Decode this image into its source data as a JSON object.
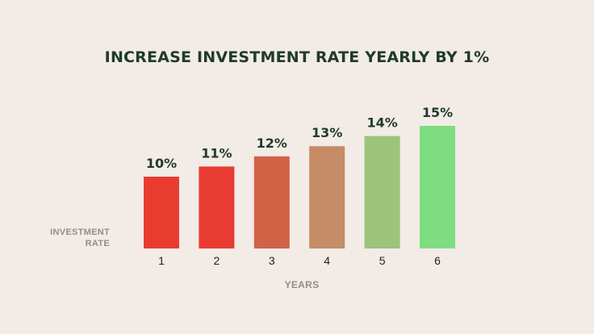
{
  "chart_data": {
    "type": "bar",
    "title": "INCREASE INVESTMENT RATE YEARLY BY 1%",
    "xlabel": "YEARS",
    "ylabel_lines": [
      "INVESTMENT",
      "RATE"
    ],
    "categories": [
      "1",
      "2",
      "3",
      "4",
      "5",
      "6"
    ],
    "values": [
      10,
      11,
      12,
      13,
      14,
      15
    ],
    "value_labels": [
      "10%",
      "11%",
      "12%",
      "13%",
      "14%",
      "15%"
    ],
    "colors": [
      "#e83c31",
      "#e83b32",
      "#d26246",
      "#c58c67",
      "#9bc47a",
      "#7ddd80"
    ],
    "ylim": [
      0,
      15
    ],
    "grid": false,
    "legend": "none"
  }
}
